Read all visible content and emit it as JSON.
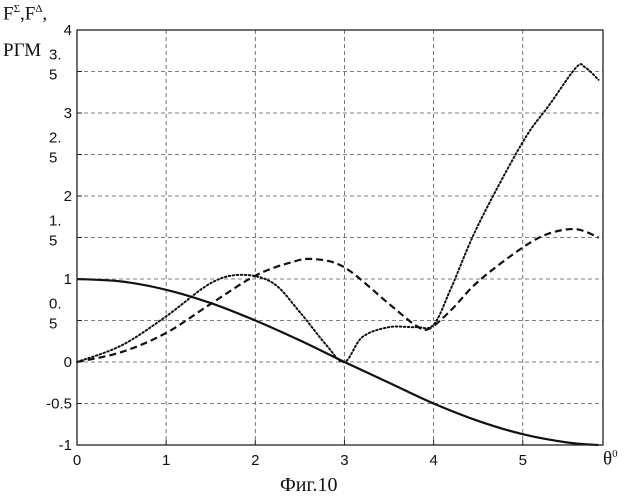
{
  "chart_data": {
    "type": "line",
    "ylabel_line1": "F",
    "ylabel_sup1": "Σ",
    "ylabel_sep": ",F",
    "ylabel_sup2": "Δ",
    "ylabel_comma": ",",
    "ylabel_line2": "РГМ",
    "xlabel": "θ",
    "xlabel_sup": "0",
    "caption": "Фиг.10",
    "xlim": [
      0,
      5.9
    ],
    "ylim": [
      -1,
      4
    ],
    "grid": true,
    "x_ticks": [
      {
        "value": 0,
        "label": "0"
      },
      {
        "value": 1,
        "label": "1"
      },
      {
        "value": 2,
        "label": "2"
      },
      {
        "value": 3,
        "label": "3"
      },
      {
        "value": 4,
        "label": "4"
      },
      {
        "value": 5,
        "label": "5"
      }
    ],
    "y_ticks": [
      {
        "value": -1,
        "label": [
          "-1"
        ]
      },
      {
        "value": -0.5,
        "label": [
          "-0.5"
        ]
      },
      {
        "value": 0,
        "label": [
          "0"
        ]
      },
      {
        "value": 0.5,
        "label": [
          "0.",
          "5"
        ]
      },
      {
        "value": 1,
        "label": [
          "1"
        ]
      },
      {
        "value": 1.5,
        "label": [
          "1.",
          "5"
        ]
      },
      {
        "value": 2,
        "label": [
          "2"
        ]
      },
      {
        "value": 2.5,
        "label": [
          "2.",
          "5"
        ]
      },
      {
        "value": 3,
        "label": [
          "3"
        ]
      },
      {
        "value": 3.5,
        "label": [
          "3.",
          "5"
        ]
      },
      {
        "value": 4,
        "label": [
          "4"
        ]
      }
    ],
    "series": [
      {
        "style": "solid",
        "x": [
          0,
          0.5,
          1.0,
          1.5,
          2.0,
          2.5,
          3.0,
          3.5,
          4.0,
          4.5,
          5.0,
          5.5,
          5.85
        ],
        "y": [
          1.0,
          0.97,
          0.87,
          0.71,
          0.5,
          0.26,
          0.0,
          -0.25,
          -0.5,
          -0.71,
          -0.87,
          -0.97,
          -1.0
        ]
      },
      {
        "style": "dashed",
        "x": [
          0,
          0.5,
          1.0,
          1.5,
          2.0,
          2.4,
          2.65,
          3.0,
          3.5,
          3.8,
          3.95,
          4.2,
          4.5,
          5.0,
          5.3,
          5.6,
          5.85
        ],
        "y": [
          0,
          0.12,
          0.35,
          0.7,
          1.04,
          1.2,
          1.24,
          1.14,
          0.7,
          0.44,
          0.4,
          0.63,
          0.97,
          1.38,
          1.55,
          1.6,
          1.5
        ]
      },
      {
        "style": "dotted",
        "x": [
          0,
          0.5,
          1.0,
          1.5,
          1.85,
          2.2,
          2.5,
          2.8,
          3.0,
          3.2,
          3.5,
          3.8,
          4.0,
          4.2,
          4.5,
          5.0,
          5.3,
          5.6,
          5.7,
          5.85
        ],
        "y": [
          0,
          0.2,
          0.55,
          0.95,
          1.05,
          0.95,
          0.6,
          0.2,
          0.0,
          0.3,
          0.42,
          0.42,
          0.45,
          0.9,
          1.65,
          2.65,
          3.1,
          3.55,
          3.55,
          3.4
        ]
      }
    ]
  }
}
